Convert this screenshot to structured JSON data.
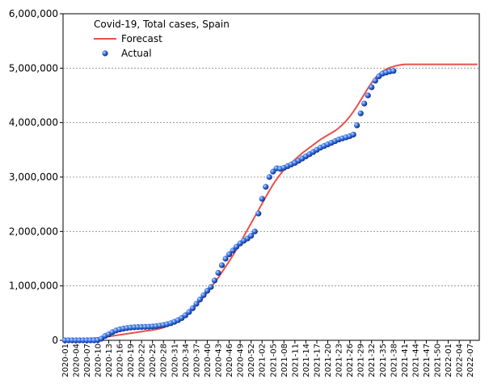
{
  "chart_data": {
    "type": "line",
    "title": "Covid-19, Total cases, Spain",
    "categories": [
      "2020-01",
      null,
      null,
      "2020-04",
      null,
      null,
      "2020-07",
      null,
      null,
      "2020-10",
      null,
      null,
      "2020-13",
      null,
      null,
      "2020-16",
      null,
      null,
      "2020-19",
      null,
      null,
      "2020-22",
      null,
      null,
      "2020-25",
      null,
      null,
      "2020-28",
      null,
      null,
      "2020-31",
      null,
      null,
      "2020-34",
      null,
      null,
      "2020-37",
      null,
      null,
      "2020-40",
      null,
      null,
      "2020-43",
      null,
      null,
      "2020-46",
      null,
      null,
      "2020-49",
      null,
      null,
      "2020-52",
      null,
      null,
      "2021-02",
      null,
      null,
      "2021-05",
      null,
      null,
      "2021-08",
      null,
      null,
      "2021-11",
      null,
      null,
      "2021-14",
      null,
      null,
      "2021-17",
      null,
      null,
      "2021-20",
      null,
      null,
      "2021-23",
      null,
      null,
      "2021-26",
      null,
      null,
      "2021-29",
      null,
      null,
      "2021-32",
      null,
      null,
      "2021-35",
      null,
      null,
      "2021-38",
      null,
      null,
      "2021-41",
      null,
      null,
      "2021-44",
      null,
      null,
      "2021-47",
      null,
      null,
      "2021-50",
      null,
      null,
      "2022-01",
      null,
      null,
      "2022-04",
      null,
      null,
      "2022-07",
      null,
      null
    ],
    "series": [
      {
        "name": "Forecast",
        "kind": "line",
        "color": "#e8504a",
        "values": [
          0,
          5000,
          10000,
          15000,
          20000,
          25000,
          30000,
          35000,
          40000,
          45000,
          50000,
          60000,
          70000,
          80000,
          90000,
          100000,
          110000,
          120000,
          130000,
          140000,
          150000,
          160000,
          170000,
          180000,
          190000,
          200000,
          215000,
          235000,
          260000,
          290000,
          320000,
          360000,
          410000,
          470000,
          530000,
          590000,
          650000,
          720000,
          800000,
          880000,
          970000,
          1060000,
          1150000,
          1250000,
          1350000,
          1450000,
          1560000,
          1670000,
          1790000,
          1910000,
          2030000,
          2150000,
          2270000,
          2390000,
          2510000,
          2630000,
          2750000,
          2860000,
          2960000,
          3050000,
          3130000,
          3200000,
          3260000,
          3320000,
          3380000,
          3440000,
          3490000,
          3540000,
          3590000,
          3640000,
          3690000,
          3730000,
          3770000,
          3810000,
          3850000,
          3900000,
          3960000,
          4030000,
          4110000,
          4200000,
          4300000,
          4410000,
          4520000,
          4630000,
          4730000,
          4820000,
          4890000,
          4940000,
          4980000,
          5010000,
          5030000,
          5050000,
          5060000,
          5070000,
          5070000,
          5070000,
          5070000,
          5070000,
          5070000,
          5070000,
          5070000,
          5070000,
          5070000,
          5070000,
          5070000,
          5070000,
          5070000,
          5070000,
          5070000,
          5070000,
          5070000,
          5070000,
          5070000,
          5070000
        ]
      },
      {
        "name": "Actual",
        "kind": "scatter",
        "color": "#1f4fd8",
        "values": [
          0,
          0,
          0,
          0,
          0,
          0,
          0,
          0,
          0,
          5000,
          30000,
          80000,
          110000,
          150000,
          180000,
          200000,
          215000,
          225000,
          235000,
          240000,
          243000,
          245000,
          247000,
          250000,
          255000,
          260000,
          270000,
          280000,
          295000,
          315000,
          340000,
          370000,
          410000,
          460000,
          520000,
          590000,
          670000,
          750000,
          830000,
          910000,
          980000,
          1100000,
          1240000,
          1380000,
          1500000,
          1580000,
          1650000,
          1720000,
          1780000,
          1830000,
          1870000,
          1920000,
          2000000,
          2330000,
          2600000,
          2820000,
          3000000,
          3100000,
          3160000,
          3150000,
          3170000,
          3200000,
          3230000,
          3260000,
          3300000,
          3340000,
          3380000,
          3420000,
          3460000,
          3500000,
          3540000,
          3570000,
          3600000,
          3630000,
          3660000,
          3690000,
          3710000,
          3730000,
          3750000,
          3780000,
          3950000,
          4170000,
          4350000,
          4500000,
          4650000,
          4770000,
          4850000,
          4900000,
          4920000,
          4940000,
          4950000,
          null,
          null,
          null,
          null,
          null,
          null,
          null,
          null,
          null,
          null,
          null,
          null,
          null,
          null,
          null,
          null,
          null,
          null,
          null,
          null,
          null,
          null,
          null
        ]
      }
    ],
    "ylim": [
      0,
      6000000
    ],
    "yticks": [
      0,
      {
        "value": 1000000,
        "label": "1,000,000"
      },
      {
        "value": 2000000,
        "label": "2,000,000"
      },
      {
        "value": 3000000,
        "label": "3,000,000"
      },
      {
        "value": 4000000,
        "label": "4,000,000"
      },
      {
        "value": 5000000,
        "label": "5,000,000"
      },
      {
        "value": 6000000,
        "label": "6,000,000"
      }
    ],
    "grid": true,
    "legend": "upper left"
  }
}
